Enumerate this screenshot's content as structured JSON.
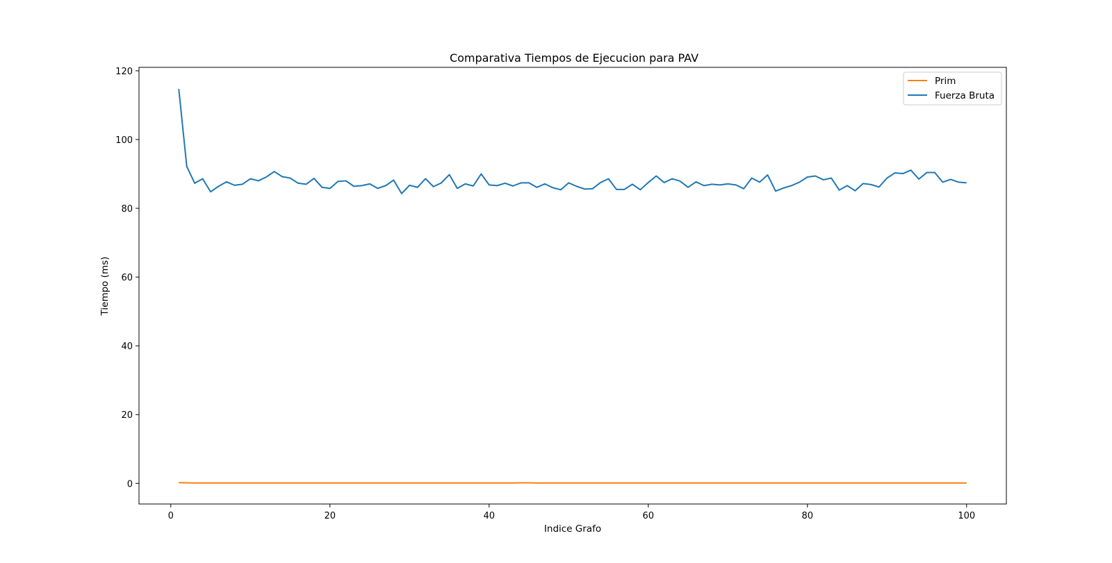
{
  "chart_data": {
    "type": "line",
    "title": "Comparativa Tiempos de Ejecucion para PAV",
    "xlabel": "Indice Grafo",
    "ylabel": "Tiempo (ms)",
    "xlim": [
      -4,
      105
    ],
    "ylim": [
      -6,
      121
    ],
    "xticks": [
      0,
      20,
      40,
      60,
      80,
      100
    ],
    "yticks": [
      0,
      20,
      40,
      60,
      80,
      100,
      120
    ],
    "grid": false,
    "legend_position": "top-right",
    "x": [
      1,
      2,
      3,
      4,
      5,
      6,
      7,
      8,
      9,
      10,
      11,
      12,
      13,
      14,
      15,
      16,
      17,
      18,
      19,
      20,
      21,
      22,
      23,
      24,
      25,
      26,
      27,
      28,
      29,
      30,
      31,
      32,
      33,
      34,
      35,
      36,
      37,
      38,
      39,
      40,
      41,
      42,
      43,
      44,
      45,
      46,
      47,
      48,
      49,
      50,
      51,
      52,
      53,
      54,
      55,
      56,
      57,
      58,
      59,
      60,
      61,
      62,
      63,
      64,
      65,
      66,
      67,
      68,
      69,
      70,
      71,
      72,
      73,
      74,
      75,
      76,
      77,
      78,
      79,
      80,
      81,
      82,
      83,
      84,
      85,
      86,
      87,
      88,
      89,
      90,
      91,
      92,
      93,
      94,
      95,
      96,
      97,
      98,
      99,
      100
    ],
    "series": [
      {
        "name": "Prim",
        "color": "#ff7f0e",
        "values": [
          0.2,
          0.15,
          0.1,
          0.1,
          0.1,
          0.1,
          0.1,
          0.1,
          0.1,
          0.1,
          0.1,
          0.1,
          0.1,
          0.1,
          0.1,
          0.1,
          0.1,
          0.1,
          0.1,
          0.1,
          0.1,
          0.1,
          0.1,
          0.1,
          0.1,
          0.1,
          0.1,
          0.1,
          0.1,
          0.1,
          0.1,
          0.1,
          0.1,
          0.1,
          0.1,
          0.1,
          0.1,
          0.1,
          0.1,
          0.1,
          0.1,
          0.1,
          0.1,
          0.15,
          0.15,
          0.1,
          0.1,
          0.1,
          0.1,
          0.1,
          0.1,
          0.1,
          0.1,
          0.1,
          0.1,
          0.1,
          0.1,
          0.1,
          0.1,
          0.1,
          0.1,
          0.1,
          0.1,
          0.1,
          0.1,
          0.1,
          0.1,
          0.1,
          0.1,
          0.1,
          0.1,
          0.1,
          0.1,
          0.1,
          0.1,
          0.1,
          0.1,
          0.1,
          0.1,
          0.1,
          0.1,
          0.1,
          0.1,
          0.1,
          0.1,
          0.1,
          0.1,
          0.1,
          0.1,
          0.1,
          0.1,
          0.1,
          0.1,
          0.1,
          0.1,
          0.1,
          0.1,
          0.1,
          0.1,
          0.1
        ]
      },
      {
        "name": "Fuerza Bruta",
        "color": "#1f77b4",
        "values": [
          114.7,
          92.2,
          87.3,
          88.6,
          84.8,
          86.4,
          87.7,
          86.7,
          87.0,
          88.6,
          88.0,
          89.1,
          90.7,
          89.2,
          88.8,
          87.3,
          87.0,
          88.7,
          86.1,
          85.8,
          87.8,
          88.0,
          86.4,
          86.6,
          87.1,
          85.8,
          86.6,
          88.2,
          84.3,
          86.7,
          86.1,
          88.6,
          86.3,
          87.4,
          89.8,
          85.8,
          87.1,
          86.5,
          90.0,
          86.8,
          86.6,
          87.3,
          86.5,
          87.4,
          87.4,
          86.1,
          87.1,
          86.0,
          85.4,
          87.4,
          86.4,
          85.6,
          85.7,
          87.5,
          88.6,
          85.5,
          85.5,
          87.0,
          85.4,
          87.5,
          89.4,
          87.5,
          88.6,
          87.9,
          86.1,
          87.7,
          86.6,
          87.0,
          86.8,
          87.1,
          86.8,
          85.7,
          88.8,
          87.6,
          89.7,
          85.0,
          85.9,
          86.6,
          87.6,
          89.1,
          89.4,
          88.3,
          88.8,
          85.3,
          86.6,
          85.1,
          87.2,
          86.9,
          86.2,
          88.8,
          90.3,
          90.1,
          91.1,
          88.5,
          90.4,
          90.4,
          87.6,
          88.4,
          87.6,
          87.4
        ]
      }
    ]
  }
}
